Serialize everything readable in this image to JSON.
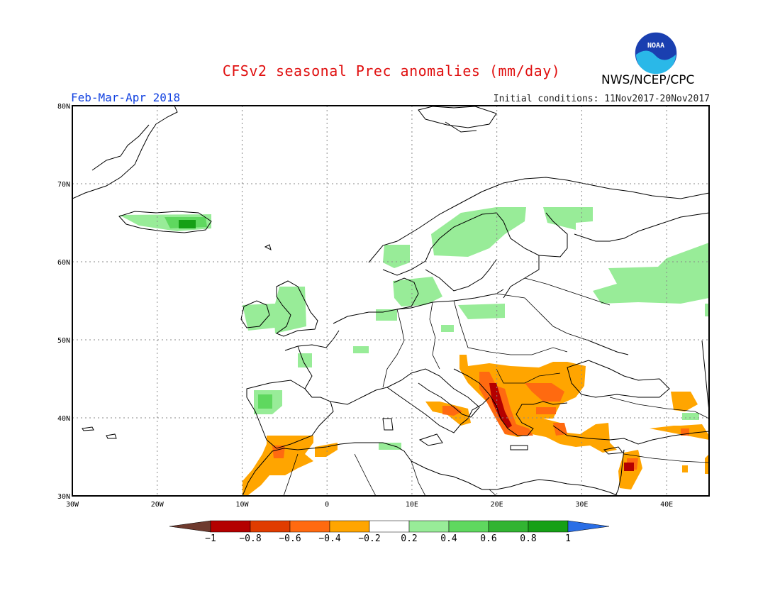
{
  "header": {
    "title": "CFSv2 seasonal Prec anomalies (mm/day)",
    "season": "Feb-Mar-Apr 2018",
    "initial_conditions": "Initial conditions: 11Nov2017-20Nov2017",
    "agency": "NWS/NCEP/CPC",
    "logo_text": "NOAA"
  },
  "map": {
    "region": "Europe",
    "lon_range": [
      -30,
      45
    ],
    "lat_range": [
      30,
      80
    ],
    "lon_ticks": [
      "30W",
      "20W",
      "10W",
      "0",
      "10E",
      "20E",
      "30E",
      "40E"
    ],
    "lat_ticks": [
      "30N",
      "40N",
      "50N",
      "60N",
      "70N",
      "80N"
    ],
    "grid": "dotted"
  },
  "colorbar": {
    "tick_labels": [
      "-1",
      "-0.8",
      "-0.6",
      "-0.4",
      "-0.2",
      "0.2",
      "0.4",
      "0.6",
      "0.8",
      "1"
    ],
    "colors": [
      "#6e3a2e",
      "#b40000",
      "#e03c00",
      "#ff6a10",
      "#ffa500",
      "#ffffff",
      "#98ec98",
      "#5fd85f",
      "#32b432",
      "#16a016",
      "#2a6ee6"
    ]
  },
  "chart_data": {
    "type": "heatmap",
    "variable": "precipitation anomaly",
    "units": "mm/day",
    "levels": [
      -1,
      -0.8,
      -0.6,
      -0.4,
      -0.2,
      0.2,
      0.4,
      0.6,
      0.8,
      1
    ],
    "notable_anomalies": [
      {
        "region": "Iceland",
        "range": "0.2 to 0.8"
      },
      {
        "region": "Scandinavia and Baltic",
        "range": "0.2 to 0.4"
      },
      {
        "region": "British Isles",
        "range": "0.2 to 0.4"
      },
      {
        "region": "NW Russia",
        "range": "0.2 to 0.4"
      },
      {
        "region": "NW Iberia",
        "range": "0.2 to 0.6"
      },
      {
        "region": "Balkans and Greece",
        "range": "-0.8 to -0.2"
      },
      {
        "region": "Western Turkey and Aegean",
        "range": "-0.6 to -0.2"
      },
      {
        "region": "Morocco and Algeria coast",
        "range": "-0.6 to -0.2"
      },
      {
        "region": "Eastern Mediterranean and Levant",
        "range": "-0.8 to -0.2"
      }
    ]
  }
}
